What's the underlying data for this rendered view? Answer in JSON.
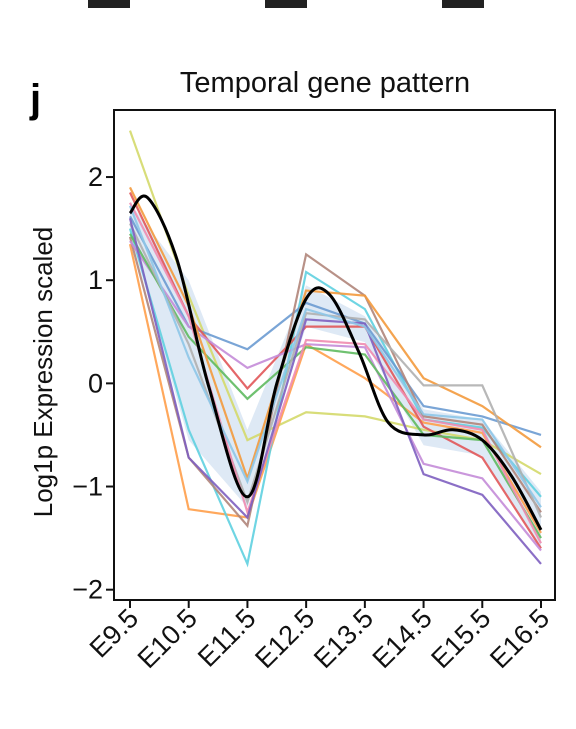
{
  "chart_data": {
    "type": "line",
    "panel_label": "j",
    "title": "Temporal gene pattern",
    "xlabel": "",
    "ylabel": "Log1p Expression scaled",
    "categories": [
      "E9.5",
      "E10.5",
      "E11.5",
      "E12.5",
      "E13.5",
      "E14.5",
      "E15.5",
      "E16.5"
    ],
    "yticks": [
      -2,
      -1,
      0,
      1,
      2
    ],
    "ylim": [
      -2.1,
      2.65
    ],
    "grid": false,
    "legend": "none",
    "series": [
      {
        "color": "#d4d96a",
        "values": [
          2.45,
          0.85,
          -0.55,
          -0.28,
          -0.32,
          -0.45,
          -0.55,
          -0.88
        ]
      },
      {
        "color": "#ff9f4a",
        "values": [
          1.35,
          -1.22,
          -1.3,
          0.38,
          0.05,
          -0.38,
          -0.48,
          -1.45
        ]
      },
      {
        "color": "#5fd0e0",
        "values": [
          1.5,
          -0.45,
          -1.75,
          1.08,
          0.72,
          -0.35,
          -0.43,
          -1.1
        ]
      },
      {
        "color": "#6b9bd2",
        "values": [
          1.62,
          0.55,
          0.33,
          0.78,
          0.58,
          -0.22,
          -0.32,
          -0.5
        ]
      },
      {
        "color": "#b0857a",
        "values": [
          1.42,
          -0.72,
          -1.38,
          1.25,
          0.85,
          -0.32,
          -0.4,
          -1.25
        ]
      },
      {
        "color": "#e15759",
        "values": [
          1.85,
          0.65,
          -0.05,
          0.55,
          0.55,
          -0.42,
          -0.72,
          -1.6
        ]
      },
      {
        "color": "#c48cd8",
        "values": [
          1.38,
          0.55,
          0.15,
          0.38,
          0.35,
          -0.78,
          -0.92,
          -1.62
        ]
      },
      {
        "color": "#5fba60",
        "values": [
          1.45,
          0.45,
          -0.15,
          0.35,
          0.28,
          -0.5,
          -0.55,
          -1.5
        ]
      },
      {
        "color": "#f39a3d",
        "values": [
          1.9,
          0.75,
          -0.92,
          0.9,
          0.85,
          0.05,
          -0.22,
          -0.62
        ]
      },
      {
        "color": "#b0b0b0",
        "values": [
          1.55,
          0.38,
          -1.15,
          0.68,
          0.62,
          -0.02,
          -0.02,
          -1.3
        ]
      },
      {
        "color": "#f08cb0",
        "values": [
          1.75,
          0.65,
          -1.25,
          0.42,
          0.38,
          -0.35,
          -0.45,
          -1.55
        ]
      },
      {
        "color": "#7e5fc0",
        "values": [
          1.6,
          -0.72,
          -1.3,
          0.62,
          0.58,
          -0.88,
          -1.08,
          -1.75
        ]
      },
      {
        "color": "#8ec6e8",
        "values": [
          1.72,
          0.25,
          -0.95,
          0.72,
          0.55,
          -0.3,
          -0.35,
          -1.2
        ]
      }
    ],
    "mean_curve": {
      "color": "#000000",
      "points": [
        [
          0,
          1.65
        ],
        [
          0.3,
          1.8
        ],
        [
          0.8,
          1.2
        ],
        [
          1.35,
          -0.05
        ],
        [
          2.0,
          -1.1
        ],
        [
          2.5,
          0.0
        ],
        [
          3.0,
          0.82
        ],
        [
          3.4,
          0.86
        ],
        [
          3.9,
          0.3
        ],
        [
          4.4,
          -0.38
        ],
        [
          5.0,
          -0.5
        ],
        [
          5.5,
          -0.45
        ],
        [
          6.0,
          -0.55
        ],
        [
          6.5,
          -0.9
        ],
        [
          7.0,
          -1.42
        ]
      ]
    },
    "band": {
      "color": "#d6e4f2",
      "upper": [
        1.75,
        1.0,
        -0.45,
        0.95,
        0.65,
        -0.25,
        -0.35,
        -1.05
      ],
      "lower": [
        1.45,
        -0.55,
        -1.2,
        0.55,
        0.4,
        -0.6,
        -0.7,
        -1.6
      ]
    }
  }
}
